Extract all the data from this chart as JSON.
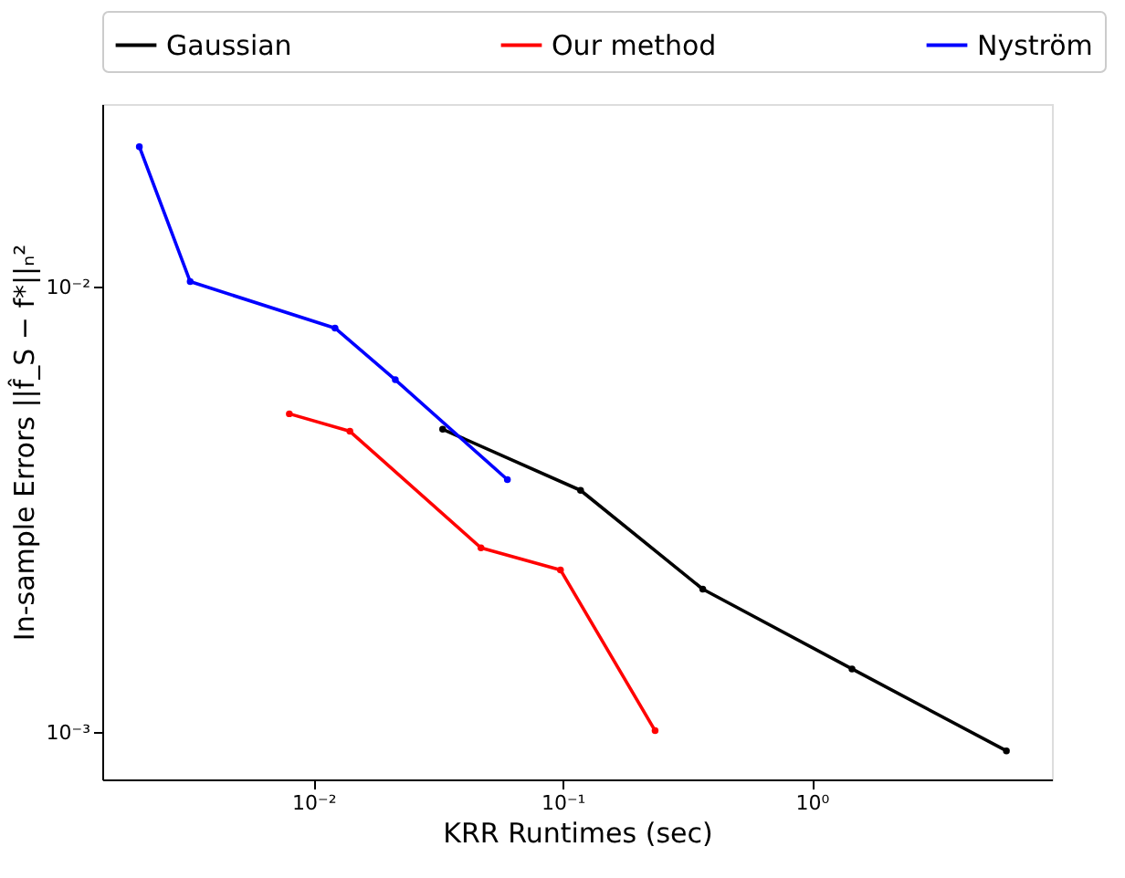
{
  "chart_data": {
    "type": "line",
    "xlabel": "KRR Runtimes (sec)",
    "ylabel": "In-sample Errors ||f̂_S − f*||ₙ²",
    "log": "xy",
    "grid": false,
    "legend": "top",
    "marker": "circle",
    "line_style": "solid",
    "xlim": [
      0.00142,
      9.2
    ],
    "ylim": [
      0.000785,
      0.0258
    ],
    "xticks": [
      {
        "value": 0.01,
        "label": "10⁻²"
      },
      {
        "value": 0.1,
        "label": "10⁻¹"
      },
      {
        "value": 1,
        "label": "10⁰"
      }
    ],
    "yticks": [
      {
        "value": 0.001,
        "label": "10⁻³"
      },
      {
        "value": 0.01,
        "label": "10⁻²"
      }
    ],
    "series": [
      {
        "name": "Gaussian",
        "color": "#000000",
        "x": [
          0.033,
          0.118,
          0.365,
          1.45,
          6.04
        ],
        "values": [
          0.0048,
          0.0035,
          0.0021,
          0.00139,
          0.00091
        ]
      },
      {
        "name": "Our method",
        "color": "#ff0000",
        "x": [
          0.008,
          0.014,
          0.047,
          0.098,
          0.235
        ],
        "values": [
          0.0052,
          0.00475,
          0.0026,
          0.00232,
          0.00101
        ]
      },
      {
        "name": "Nyström",
        "color": "#0000ff",
        "x": [
          0.002,
          0.0032,
          0.0122,
          0.0213,
          0.06
        ],
        "values": [
          0.0207,
          0.0103,
          0.0081,
          0.0062,
          0.0037
        ]
      }
    ]
  }
}
